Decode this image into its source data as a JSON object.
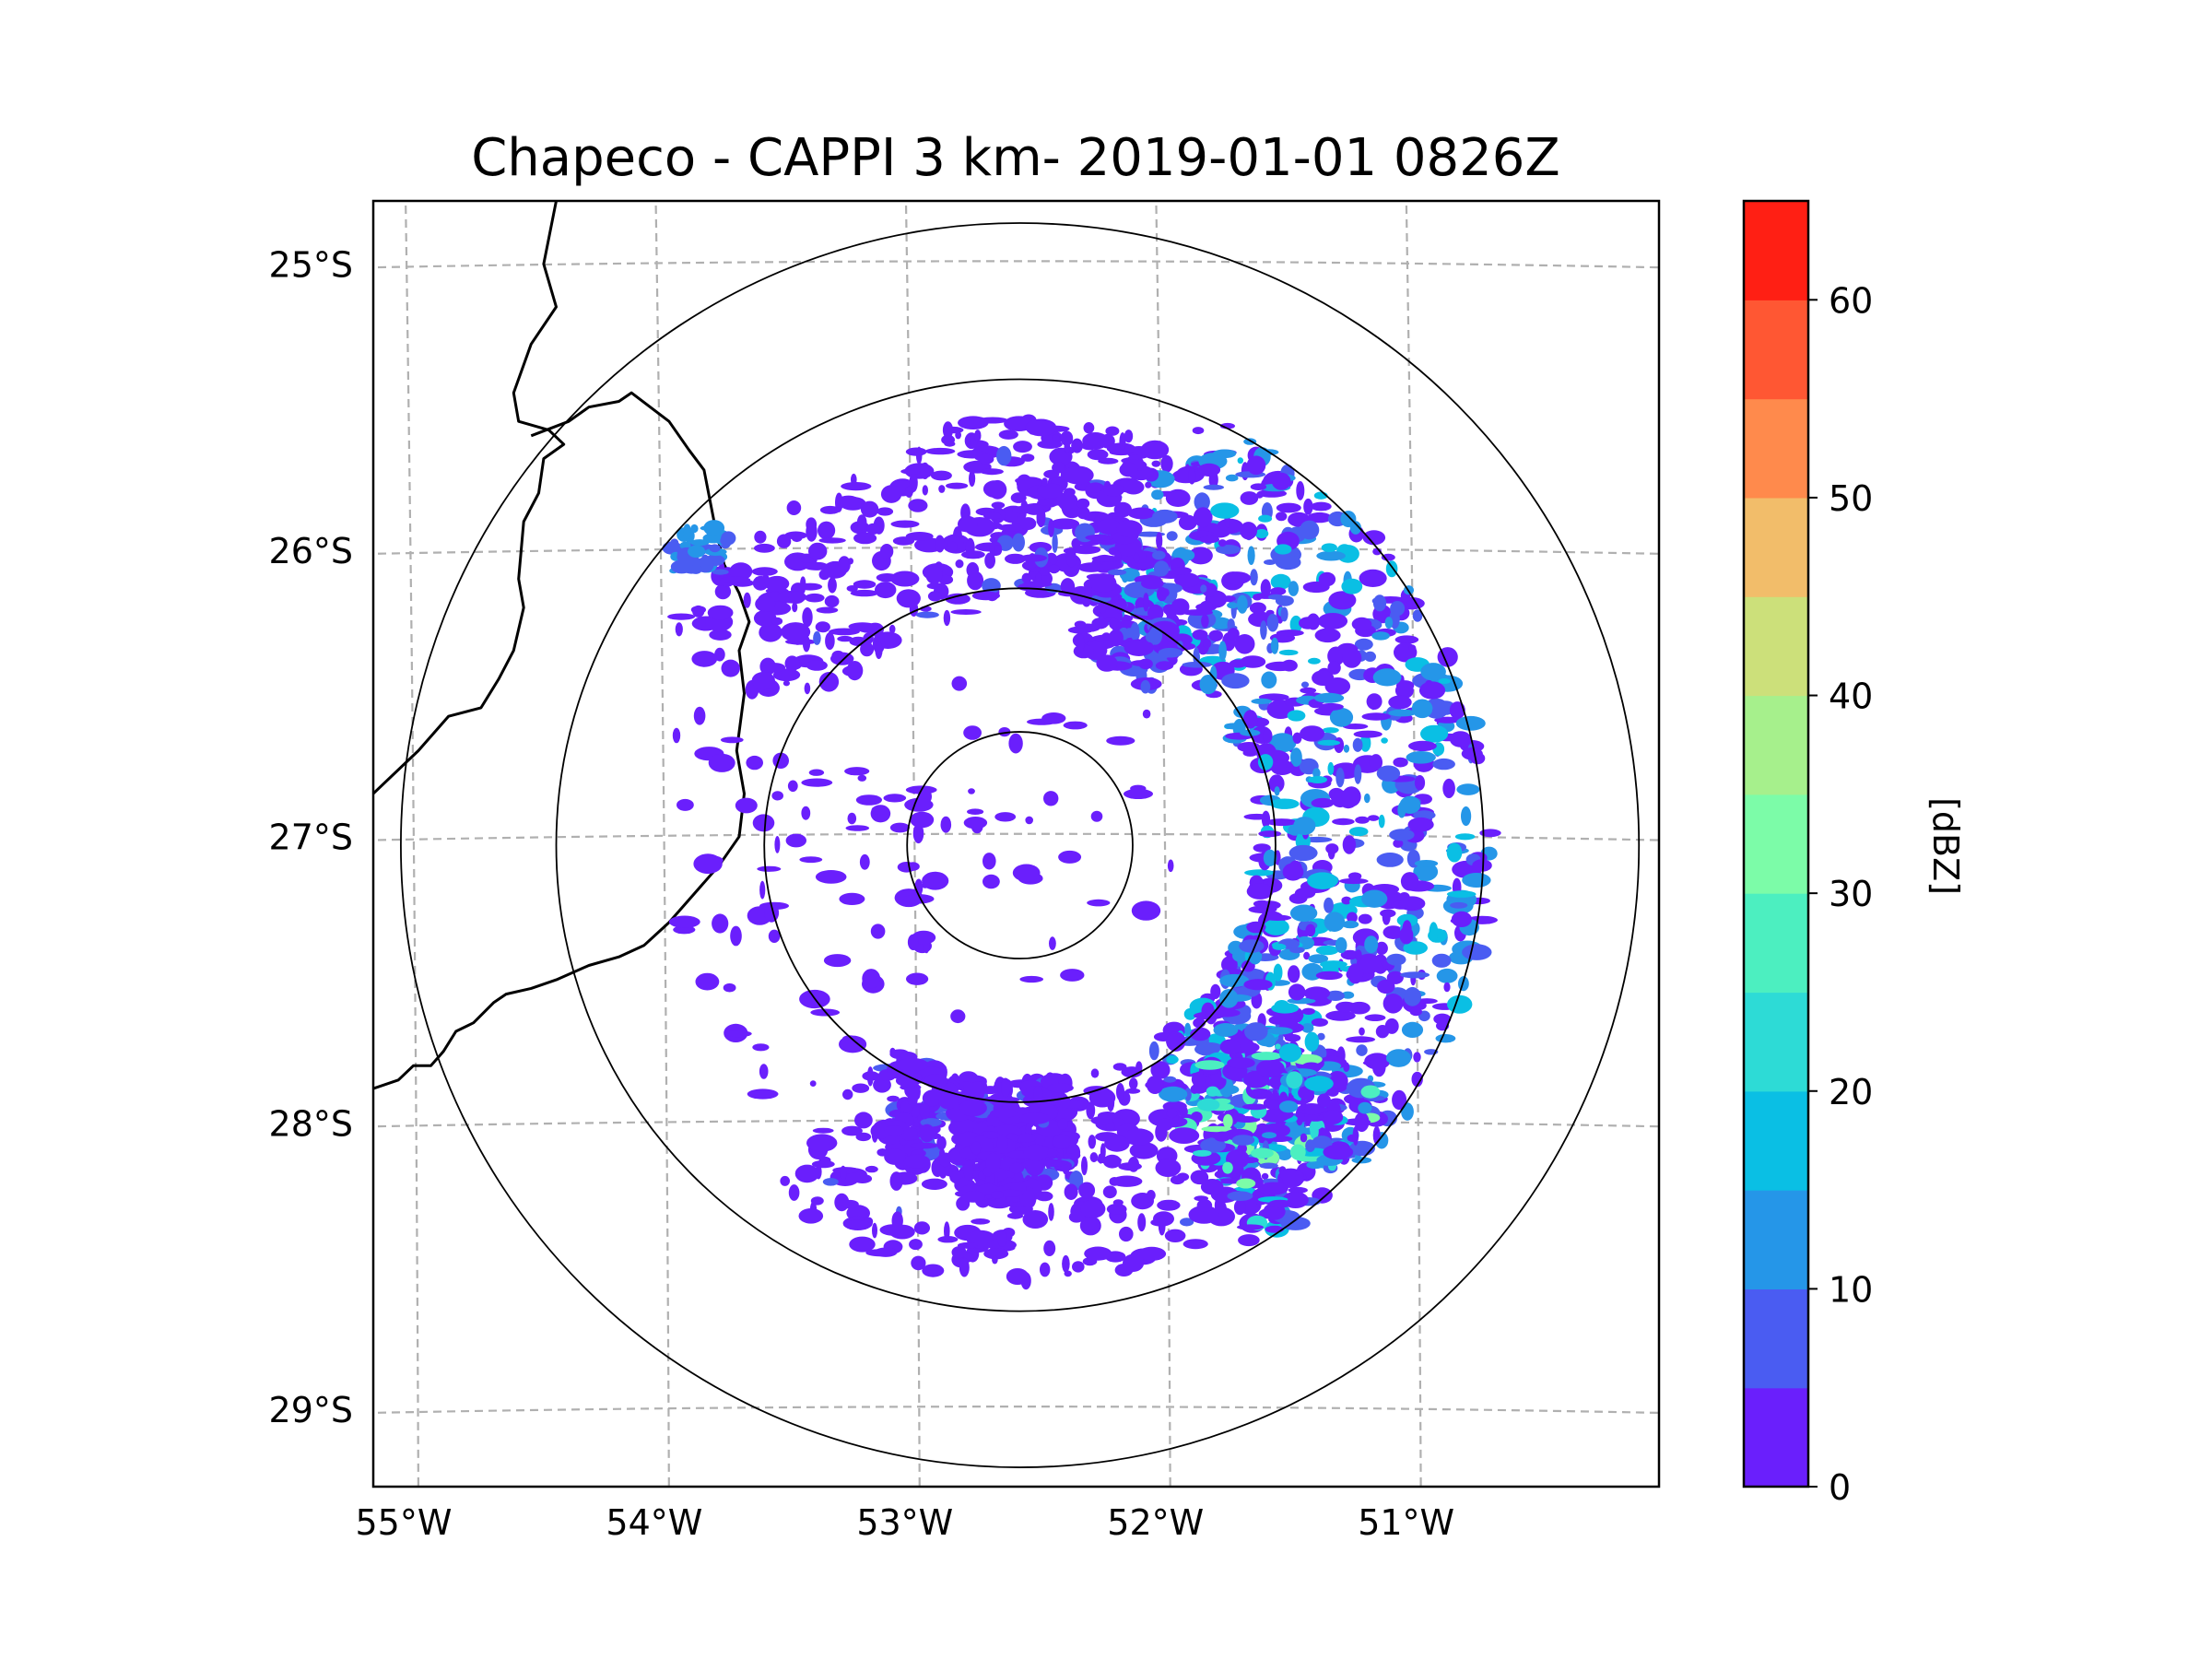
{
  "chart_data": {
    "type": "radar-map",
    "title": "Chapeco - CAPPI 3 km- 2019-01-01 0826Z",
    "x_tick_labels": [
      "55°W",
      "54°W",
      "53°W",
      "52°W",
      "51°W"
    ],
    "y_tick_labels": [
      "25°S",
      "26°S",
      "27°S",
      "28°S",
      "29°S"
    ],
    "lon_ticks": [
      -55,
      -54,
      -53,
      -52,
      -51
    ],
    "lat_ticks": [
      -25,
      -26,
      -27,
      -28,
      -29
    ],
    "xlim": [
      -55.18,
      -50.05
    ],
    "ylim": [
      -29.27,
      -24.78
    ],
    "radar_site": {
      "lon": -52.6,
      "lat": -27.03
    },
    "range_rings_deg": [
      0.45,
      1.02,
      1.85,
      2.47
    ],
    "grid": true,
    "colorbar": {
      "label": "[dBZ]",
      "range": [
        0,
        65
      ],
      "tick_values": [
        0,
        10,
        20,
        30,
        40,
        50,
        60
      ],
      "tick_labels": [
        "0",
        "10",
        "20",
        "30",
        "40",
        "50",
        "60"
      ],
      "bins": [
        {
          "from": 0,
          "to": 5,
          "color": "#6a1ffc"
        },
        {
          "from": 5,
          "to": 10,
          "color": "#4a5cf2"
        },
        {
          "from": 10,
          "to": 15,
          "color": "#2596e8"
        },
        {
          "from": 15,
          "to": 20,
          "color": "#0abfe4"
        },
        {
          "from": 20,
          "to": 25,
          "color": "#2ddbd6"
        },
        {
          "from": 25,
          "to": 30,
          "color": "#4cefc0"
        },
        {
          "from": 30,
          "to": 35,
          "color": "#7cfca8"
        },
        {
          "from": 35,
          "to": 40,
          "color": "#a6f08c"
        },
        {
          "from": 40,
          "to": 45,
          "color": "#cce07a"
        },
        {
          "from": 45,
          "to": 50,
          "color": "#f2bd6a"
        },
        {
          "from": 50,
          "to": 55,
          "color": "#ff8a4c"
        },
        {
          "from": 55,
          "to": 60,
          "color": "#ff5733"
        },
        {
          "from": 60,
          "to": 65,
          "color": "#ff1f14"
        }
      ]
    },
    "echo_regions": [
      {
        "name": "east arc (strongest, NE-E-SE)",
        "dbz_range": [
          0,
          25
        ]
      },
      {
        "name": "southeast cells near 51.3°W 27.9°S",
        "dbz_range": [
          10,
          35
        ]
      },
      {
        "name": "south cluster near 52.7°W 28.2°S",
        "dbz_range": [
          0,
          10
        ]
      },
      {
        "name": "northwest cell near 53.9°W 26.0°S",
        "dbz_range": [
          5,
          15
        ]
      },
      {
        "name": "scattered returns north and west",
        "dbz_range": [
          0,
          10
        ]
      }
    ]
  }
}
